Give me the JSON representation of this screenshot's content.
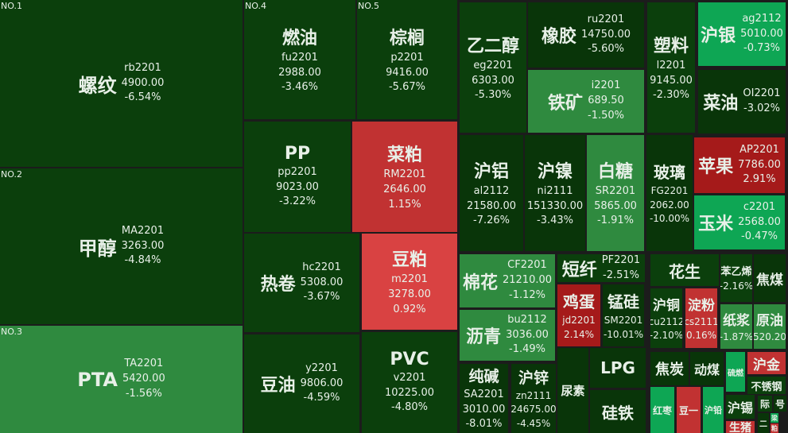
{
  "colors": {
    "dark": "#0b3f0c",
    "darker": "#093509",
    "mid": "#2f8a3f",
    "bright": "#0ea654",
    "red": "#c13232",
    "lightred": "#d94242",
    "darkred": "#a51a1a"
  },
  "items": [
    {
      "name": "螺纹",
      "code": "rb2201",
      "price": "4900.00",
      "change": "-6.54%",
      "rank": "NO.1",
      "color": "dark"
    },
    {
      "name": "甲醇",
      "code": "MA2201",
      "price": "3263.00",
      "change": "-4.84%",
      "rank": "NO.2",
      "color": "dark"
    },
    {
      "name": "PTA",
      "code": "TA2201",
      "price": "5420.00",
      "change": "-1.56%",
      "rank": "NO.3",
      "color": "mid"
    },
    {
      "name": "燃油",
      "code": "fu2201",
      "price": "2988.00",
      "change": "-3.46%",
      "rank": "NO.4",
      "color": "dark"
    },
    {
      "name": "棕榈",
      "code": "p2201",
      "price": "9416.00",
      "change": "-5.67%",
      "rank": "NO.5",
      "color": "dark"
    },
    {
      "name": "PP",
      "code": "pp2201",
      "price": "9023.00",
      "change": "-3.22%",
      "color": "dark"
    },
    {
      "name": "菜粕",
      "code": "RM2201",
      "price": "2646.00",
      "change": "1.15%",
      "color": "red"
    },
    {
      "name": "热卷",
      "code": "hc2201",
      "price": "5308.00",
      "change": "-3.67%",
      "color": "dark"
    },
    {
      "name": "豆粕",
      "code": "m2201",
      "price": "3278.00",
      "change": "0.92%",
      "color": "lightred"
    },
    {
      "name": "豆油",
      "code": "y2201",
      "price": "9806.00",
      "change": "-4.59%",
      "color": "dark"
    },
    {
      "name": "PVC",
      "code": "v2201",
      "price": "10225.00",
      "change": "-4.80%",
      "color": "dark"
    },
    {
      "name": "乙二醇",
      "code": "eg2201",
      "price": "6303.00",
      "change": "-5.30%",
      "color": "dark"
    },
    {
      "name": "橡胶",
      "code": "ru2201",
      "price": "14750.00",
      "change": "-5.60%",
      "color": "darker"
    },
    {
      "name": "铁矿",
      "code": "i2201",
      "price": "689.50",
      "change": "-1.50%",
      "color": "mid"
    },
    {
      "name": "塑料",
      "code": "l2201",
      "price": "9145.00",
      "change": "-2.30%",
      "color": "dark"
    },
    {
      "name": "沪银",
      "code": "ag2112",
      "price": "5010.00",
      "change": "-0.73%",
      "color": "bright"
    },
    {
      "name": "菜油",
      "code": "OI2201",
      "change": "-3.02%",
      "color": "darker"
    },
    {
      "name": "沪铝",
      "code": "al2112",
      "price": "21580.00",
      "change": "-7.26%",
      "color": "darker"
    },
    {
      "name": "沪镍",
      "code": "ni2111",
      "price": "151330.00",
      "change": "-3.43%",
      "color": "darker"
    },
    {
      "name": "白糖",
      "code": "SR2201",
      "price": "5865.00",
      "change": "-1.91%",
      "color": "mid"
    },
    {
      "name": "玻璃",
      "code": "FG2201",
      "price": "2062.00",
      "change": "-10.00%",
      "color": "darker"
    },
    {
      "name": "苹果",
      "code": "AP2201",
      "price": "7786.00",
      "change": "2.91%",
      "color": "darkred"
    },
    {
      "name": "玉米",
      "code": "c2201",
      "price": "2568.00",
      "change": "-0.47%",
      "color": "bright"
    },
    {
      "name": "棉花",
      "code": "CF2201",
      "price": "21210.00",
      "change": "-1.12%",
      "color": "mid"
    },
    {
      "name": "沥青",
      "code": "bu2112",
      "price": "3036.00",
      "change": "-1.49%",
      "color": "mid"
    },
    {
      "name": "短纤",
      "code": "PF2201",
      "change": "-2.51%",
      "color": "dark"
    },
    {
      "name": "鸡蛋",
      "code": "jd2201",
      "change": "2.14%",
      "color": "darkred"
    },
    {
      "name": "锰硅",
      "code": "SM2201",
      "change": "-10.01%",
      "color": "darker"
    },
    {
      "name": "纯碱",
      "code": "SA2201",
      "price": "3010.00",
      "change": "-8.01%",
      "color": "darker"
    },
    {
      "name": "沪锌",
      "code": "zn2111",
      "price": "24675.00",
      "change": "-4.45%",
      "color": "darker"
    },
    {
      "name": "尿素",
      "color": "darker"
    },
    {
      "name": "LPG",
      "color": "darker"
    },
    {
      "name": "硅铁",
      "color": "darker"
    },
    {
      "name": "花生",
      "color": "dark"
    },
    {
      "name": "苯乙烯",
      "change": "-2.16%",
      "color": "dark"
    },
    {
      "name": "焦煤",
      "color": "darker"
    },
    {
      "name": "沪铜",
      "code": "cu2112",
      "change": "-2.10%",
      "color": "dark"
    },
    {
      "name": "淀粉",
      "code": "cs2111",
      "change": "0.16%",
      "color": "red"
    },
    {
      "name": "纸浆",
      "change": "-1.87%",
      "color": "mid"
    },
    {
      "name": "原油",
      "change": "520.20",
      "color": "mid"
    },
    {
      "name": "焦炭",
      "color": "darker"
    },
    {
      "name": "动煤",
      "color": "darker"
    },
    {
      "name": "硫燃",
      "color": "bright"
    },
    {
      "name": "沪金",
      "color": "red"
    },
    {
      "name": "不锈钢",
      "color": "dark"
    },
    {
      "name": "红枣",
      "color": "bright"
    },
    {
      "name": "豆一",
      "color": "red"
    },
    {
      "name": "沪铅",
      "color": "bright"
    },
    {
      "name": "沪锡",
      "color": "dark"
    },
    {
      "name": "生猪",
      "color": "red"
    },
    {
      "name": "际",
      "color": "dark"
    },
    {
      "name": "号",
      "color": "darker"
    },
    {
      "name": "二",
      "color": "darker"
    },
    {
      "name": "梁",
      "color": "bright"
    },
    {
      "name": "粕",
      "color": "red"
    }
  ]
}
